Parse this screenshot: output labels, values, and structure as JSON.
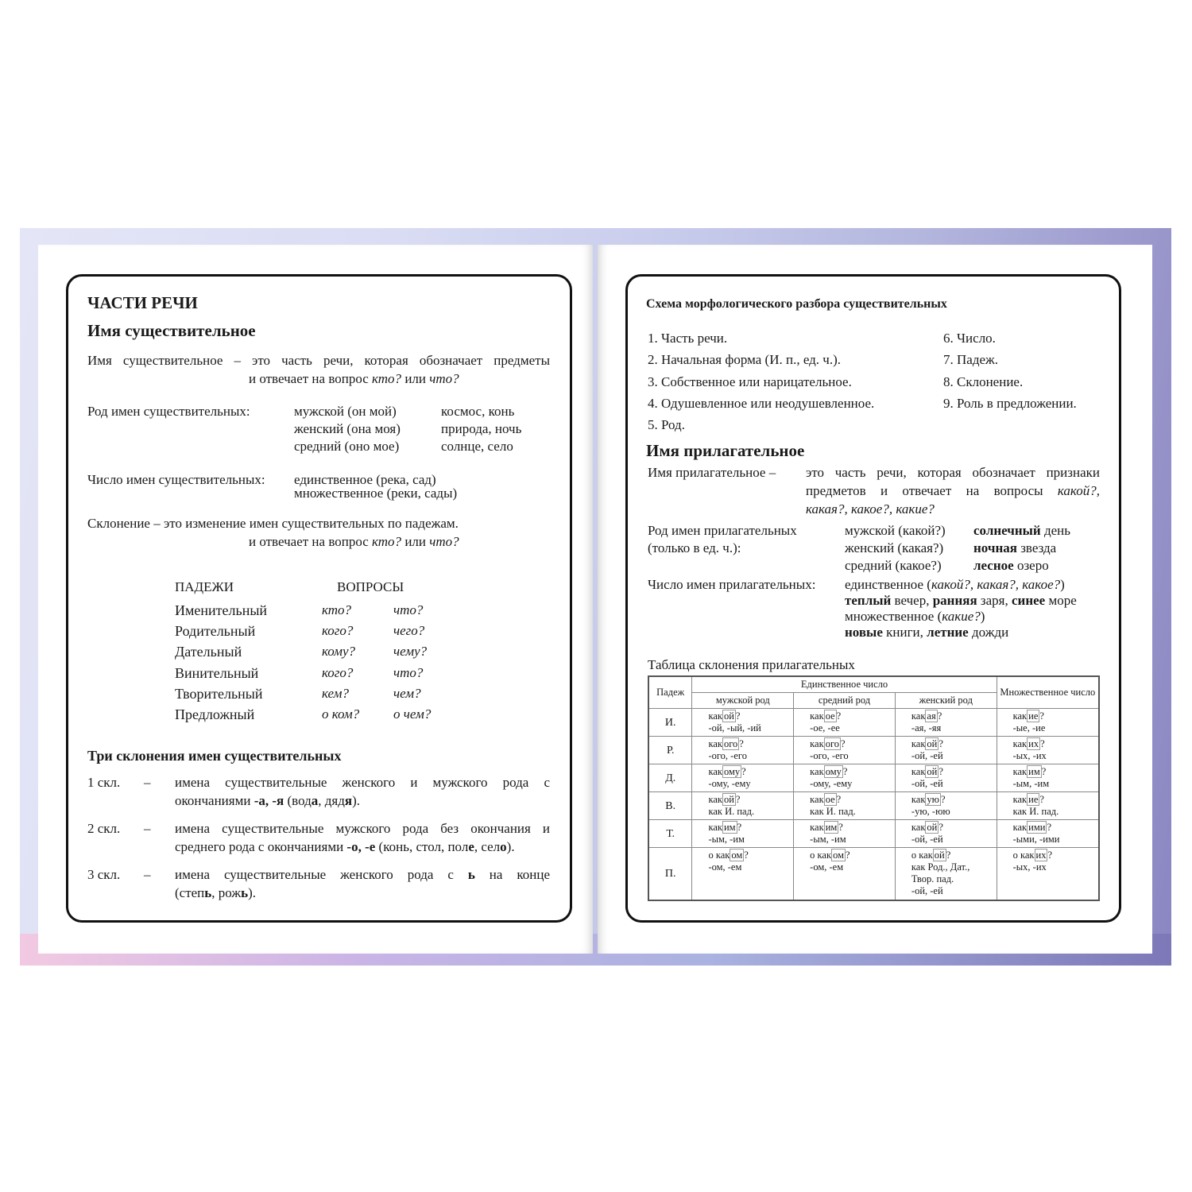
{
  "left": {
    "title": "ЧАСТИ РЕЧИ",
    "subtitle": "Имя существительное",
    "definition": [
      [
        {
          "t": "Имя существительное – это часть речи, которая обозначает предметы"
        }
      ],
      [
        {
          "t": "и отвечает на вопрос "
        },
        {
          "t": "кто?",
          "i": 1
        },
        {
          "t": " или "
        },
        {
          "t": "что?",
          "i": 1
        }
      ]
    ],
    "gender": {
      "label": "Род имен существительных:",
      "rows": [
        [
          "мужской (он мой)",
          "космос, конь"
        ],
        [
          "женский (она моя)",
          "природа, ночь"
        ],
        [
          "средний (оно мое)",
          "солнце, село"
        ]
      ]
    },
    "number": {
      "label": "Число имен существительных:",
      "rows": [
        "единственное (река, сад)",
        "множественное (реки, сады)"
      ]
    },
    "declension": [
      [
        {
          "t": "Склонение – это изменение имен существительных по падежам."
        }
      ],
      [
        {
          "t": "и отвечает на вопрос "
        },
        {
          "t": "кто?",
          "i": 1
        },
        {
          "t": " или "
        },
        {
          "t": "что?",
          "i": 1
        }
      ]
    ],
    "cases": {
      "headers": [
        "ПАДЕЖИ",
        "ВОПРОСЫ"
      ],
      "rows": [
        [
          "Именительный",
          "кто?",
          "что?"
        ],
        [
          "Родительный",
          "кого?",
          "чего?"
        ],
        [
          "Дательный",
          "кому?",
          "чему?"
        ],
        [
          "Винительный",
          "кого?",
          "что?"
        ],
        [
          "Творительный",
          "кем?",
          "чем?"
        ],
        [
          "Предложный",
          "о ком?",
          "о чем?"
        ]
      ]
    },
    "three": {
      "title": "Три склонения имен существительных",
      "items": [
        {
          "label": "1 скл.",
          "dash": "–",
          "lines": [
            [
              {
                "t": "имена существительные женского и мужского рода с"
              }
            ],
            [
              {
                "t": "окончаниями "
              },
              {
                "t": "-а, -я",
                "b": 1
              },
              {
                "t": " (вод"
              },
              {
                "t": "а",
                "b": 1
              },
              {
                "t": ", дяд"
              },
              {
                "t": "я",
                "b": 1
              },
              {
                "t": ")."
              }
            ]
          ]
        },
        {
          "label": "2 скл.",
          "dash": "–",
          "lines": [
            [
              {
                "t": "имена существительные мужского рода без окончания и"
              }
            ],
            [
              {
                "t": "среднего рода с окончаниями "
              },
              {
                "t": "-о, -е",
                "b": 1
              },
              {
                "t": " (конь, стол, пол"
              },
              {
                "t": "е",
                "b": 1
              },
              {
                "t": ", сел"
              },
              {
                "t": "о",
                "b": 1
              },
              {
                "t": ")."
              }
            ]
          ]
        },
        {
          "label": "3 скл.",
          "dash": "–",
          "lines": [
            [
              {
                "t": "имена существительные женского рода с "
              },
              {
                "t": "ь",
                "b": 1
              },
              {
                "t": " на конце"
              }
            ],
            [
              {
                "t": "(степ"
              },
              {
                "t": "ь",
                "b": 1
              },
              {
                "t": ", рож"
              },
              {
                "t": "ь",
                "b": 1
              },
              {
                "t": ")."
              }
            ]
          ]
        }
      ]
    }
  },
  "right": {
    "scheme_title": "Схема морфологического разбора существительных",
    "scheme_col1": [
      "1. Часть речи.",
      "2. Начальная форма (И. п., ед. ч.).",
      "3. Собственное или нарицательное.",
      "4. Одушевленное или неодушевленное.",
      "5. Род."
    ],
    "scheme_col2": [
      "6. Число.",
      "7. Падеж.",
      "8. Склонение.",
      "9. Роль в предложении."
    ],
    "subtitle": "Имя прилагательное",
    "def_label": "Имя прилагательное –",
    "def_lines": [
      [
        {
          "t": "это часть речи, которая обозначает признаки"
        }
      ],
      [
        {
          "t": "предметов и отвечает на вопросы "
        },
        {
          "t": "какой?,",
          "i": 1
        }
      ],
      [
        {
          "t": "какая?, какое?, какие?",
          "i": 1
        }
      ]
    ],
    "gender": {
      "label": [
        "Род имен прилагательных",
        "(только в ед. ч.):"
      ],
      "rows": [
        [
          "мужской (какой?)",
          [
            {
              "t": "солнечный",
              "b": 1
            },
            {
              "t": " день"
            }
          ]
        ],
        [
          "женский (какая?)",
          [
            {
              "t": "ночная",
              "b": 1
            },
            {
              "t": " звезда"
            }
          ]
        ],
        [
          "средний (какое?)",
          [
            {
              "t": "лесное",
              "b": 1
            },
            {
              "t": " озеро"
            }
          ]
        ]
      ]
    },
    "number": {
      "label": "Число имен прилагательных:",
      "lines": [
        [
          {
            "t": "единственное ("
          },
          {
            "t": "какой?, какая?, какое?",
            "i": 1
          },
          {
            "t": ")"
          }
        ],
        [
          {
            "t": "теплый",
            "b": 1
          },
          {
            "t": " вечер, "
          },
          {
            "t": "ранняя",
            "b": 1
          },
          {
            "t": " заря, "
          },
          {
            "t": "синее",
            "b": 1
          },
          {
            "t": " море"
          }
        ],
        [
          {
            "t": "множественное ("
          },
          {
            "t": "какие?",
            "i": 1
          },
          {
            "t": ")"
          }
        ],
        [
          {
            "t": "новые",
            "b": 1
          },
          {
            "t": " книги, "
          },
          {
            "t": "летние",
            "b": 1
          },
          {
            "t": " дожди"
          }
        ]
      ]
    },
    "table": {
      "caption": "Таблица склонения прилагательных",
      "h_case": "Падеж",
      "h_sing": "Единственное число",
      "h_plural": "Множественное число",
      "h_genders": [
        "мужской род",
        "средний род",
        "женский род"
      ],
      "rows": [
        {
          "case": "И.",
          "cells": [
            {
              "pre": "",
              "stem": "как",
              "end": "ой",
              "forms": [
                "-ой, -ый, -ий"
              ]
            },
            {
              "pre": "",
              "stem": "как",
              "end": "ое",
              "forms": [
                "-ое, -ее"
              ]
            },
            {
              "pre": "",
              "stem": "как",
              "end": "ая",
              "forms": [
                "-ая, -яя"
              ]
            },
            {
              "pre": "",
              "stem": "как",
              "end": "ие",
              "forms": [
                "-ые, -ие"
              ]
            }
          ]
        },
        {
          "case": "Р.",
          "cells": [
            {
              "pre": "",
              "stem": "как",
              "end": "ого",
              "forms": [
                "-ого, -его"
              ]
            },
            {
              "pre": "",
              "stem": "как",
              "end": "ого",
              "forms": [
                "-ого, -его"
              ]
            },
            {
              "pre": "",
              "stem": "как",
              "end": "ой",
              "forms": [
                "-ой, -ей"
              ]
            },
            {
              "pre": "",
              "stem": "как",
              "end": "их",
              "forms": [
                "-ых, -их"
              ]
            }
          ]
        },
        {
          "case": "Д.",
          "cells": [
            {
              "pre": "",
              "stem": "как",
              "end": "ому",
              "forms": [
                "-ому, -ему"
              ]
            },
            {
              "pre": "",
              "stem": "как",
              "end": "ому",
              "forms": [
                "-ому, -ему"
              ]
            },
            {
              "pre": "",
              "stem": "как",
              "end": "ой",
              "forms": [
                "-ой, -ей"
              ]
            },
            {
              "pre": "",
              "stem": "как",
              "end": "им",
              "forms": [
                "-ым, -им"
              ]
            }
          ]
        },
        {
          "case": "В.",
          "cells": [
            {
              "pre": "",
              "stem": "как",
              "end": "ой",
              "forms": [
                "как И. пад."
              ]
            },
            {
              "pre": "",
              "stem": "как",
              "end": "ое",
              "forms": [
                "как И. пад."
              ]
            },
            {
              "pre": "",
              "stem": "как",
              "end": "ую",
              "forms": [
                "-ую, -юю"
              ]
            },
            {
              "pre": "",
              "stem": "как",
              "end": "ие",
              "forms": [
                "как И. пад."
              ]
            }
          ]
        },
        {
          "case": "Т.",
          "cells": [
            {
              "pre": "",
              "stem": "как",
              "end": "им",
              "forms": [
                "-ым, -им"
              ]
            },
            {
              "pre": "",
              "stem": "как",
              "end": "им",
              "forms": [
                "-ым, -им"
              ]
            },
            {
              "pre": "",
              "stem": "как",
              "end": "ой",
              "forms": [
                "-ой, -ей"
              ]
            },
            {
              "pre": "",
              "stem": "как",
              "end": "ими",
              "forms": [
                "-ыми, -ими"
              ]
            }
          ]
        },
        {
          "case": "П.",
          "cells": [
            {
              "pre": "о ",
              "stem": "как",
              "end": "ом",
              "forms": [
                "-ом, -ем"
              ]
            },
            {
              "pre": "о ",
              "stem": "как",
              "end": "ом",
              "forms": [
                "-ом, -ем"
              ]
            },
            {
              "pre": "о ",
              "stem": "как",
              "end": "ой",
              "forms": [
                "как Род., Дат.,",
                "Твор. пад.",
                "-ой, -ей"
              ]
            },
            {
              "pre": "о ",
              "stem": "как",
              "end": "их",
              "forms": [
                "-ых, -их"
              ]
            }
          ]
        }
      ]
    }
  }
}
